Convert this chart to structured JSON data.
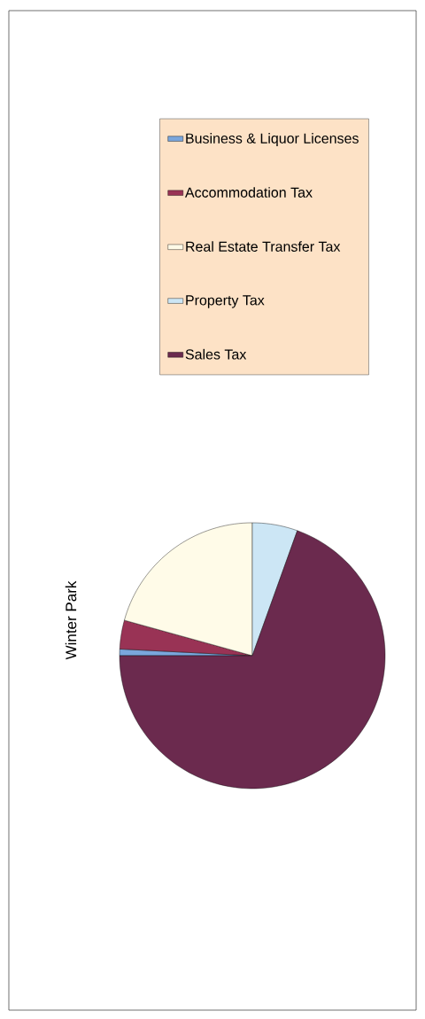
{
  "chart_data": {
    "type": "pie",
    "title": "Winter Park",
    "categories": [
      "Business & Liquor Licenses",
      "Accommodation Tax",
      "Real Estate Transfer Tax",
      "Property Tax",
      "Sales Tax"
    ],
    "values": [
      0.8,
      3.5,
      20.7,
      5.5,
      69.5
    ],
    "colors": [
      "#7aa6dc",
      "#993355",
      "#fffbe8",
      "#cce6f5",
      "#6b2a4e"
    ],
    "legend": "right"
  }
}
